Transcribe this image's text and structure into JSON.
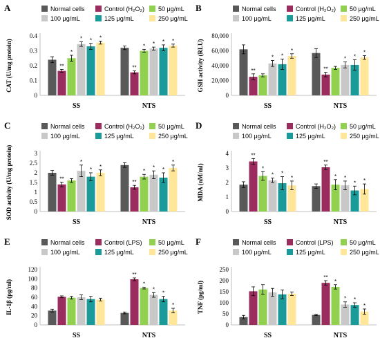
{
  "chart_data": [
    {
      "type": "bar",
      "panel_label": "A",
      "ylabel": "CAT (U/mg protein)",
      "ylim": [
        0,
        0.4
      ],
      "yticks": [
        "0",
        "0.1",
        "0.2",
        "0.3",
        "0.4"
      ],
      "categories": [
        "SS",
        "NTS"
      ],
      "legend": [
        "Normal cells",
        "Control (H₂O₂)",
        "50 μg/mL",
        "100 μg/mL",
        "125 μg/mL",
        "250 μg/mL"
      ],
      "series": [
        {
          "name": "Normal cells",
          "values": [
            0.24,
            0.32
          ],
          "errors": [
            0.02,
            0.012
          ],
          "sig": [
            "",
            ""
          ]
        },
        {
          "name": "Control (H₂O₂)",
          "values": [
            0.165,
            0.155
          ],
          "errors": [
            0.01,
            0.01
          ],
          "sig": [
            "**",
            "**"
          ]
        },
        {
          "name": "50 μg/mL",
          "values": [
            0.25,
            0.3
          ],
          "errors": [
            0.02,
            0.01
          ],
          "sig": [
            "*",
            "*"
          ]
        },
        {
          "name": "100 μg/mL",
          "values": [
            0.345,
            0.315
          ],
          "errors": [
            0.015,
            0.01
          ],
          "sig": [
            "*",
            "*"
          ]
        },
        {
          "name": "125 μg/mL",
          "values": [
            0.33,
            0.32
          ],
          "errors": [
            0.02,
            0.02
          ],
          "sig": [
            "*",
            "*"
          ]
        },
        {
          "name": "250 μg/mL",
          "values": [
            0.355,
            0.335
          ],
          "errors": [
            0.01,
            0.01
          ],
          "sig": [
            "*",
            "*"
          ]
        }
      ]
    },
    {
      "type": "bar",
      "panel_label": "B",
      "ylabel": "GSH activity (RLU)",
      "ylim": [
        0,
        80000
      ],
      "yticks": [
        "0",
        "20,000",
        "40,000",
        "60,000",
        "80,000"
      ],
      "categories": [
        "SS",
        "NTS"
      ],
      "legend": [
        "Normal cells",
        "Control (H₂O₂)",
        "50 μg/mL",
        "100 μg/mL",
        "125 μg/mL",
        "250 μg/mL"
      ],
      "series": [
        {
          "name": "Normal cells",
          "values": [
            62000,
            57000
          ],
          "errors": [
            6000,
            6000
          ],
          "sig": [
            "",
            ""
          ]
        },
        {
          "name": "Control (H₂O₂)",
          "values": [
            25000,
            28000
          ],
          "errors": [
            4000,
            3000
          ],
          "sig": [
            "**",
            "**"
          ]
        },
        {
          "name": "50 μg/mL",
          "values": [
            27000,
            37000
          ],
          "errors": [
            2000,
            2000
          ],
          "sig": [
            "",
            ""
          ]
        },
        {
          "name": "100 μg/mL",
          "values": [
            43000,
            41000
          ],
          "errors": [
            4000,
            4000
          ],
          "sig": [
            "*",
            "*"
          ]
        },
        {
          "name": "125 μg/mL",
          "values": [
            42000,
            41000
          ],
          "errors": [
            7000,
            7000
          ],
          "sig": [
            "*",
            "*"
          ]
        },
        {
          "name": "250 μg/mL",
          "values": [
            53000,
            51000
          ],
          "errors": [
            3000,
            2500
          ],
          "sig": [
            "*",
            "*"
          ]
        }
      ]
    },
    {
      "type": "bar",
      "panel_label": "C",
      "ylabel": "SOD activity (U/mg protein)",
      "ylim": [
        0,
        3
      ],
      "yticks": [
        "0",
        "0.5",
        "1",
        "1.5",
        "2",
        "2.5",
        "3"
      ],
      "categories": [
        "SS",
        "NTS"
      ],
      "legend": [
        "Normal cells",
        "Control (H₂O₂)",
        "50 μg/mL",
        "100 μg/mL",
        "125 μg/mL",
        "250 μg/mL"
      ],
      "series": [
        {
          "name": "Normal cells",
          "values": [
            2.0,
            2.4
          ],
          "errors": [
            0.12,
            0.12
          ],
          "sig": [
            "",
            ""
          ]
        },
        {
          "name": "Control (H₂O₂)",
          "values": [
            1.4,
            1.25
          ],
          "errors": [
            0.12,
            0.1
          ],
          "sig": [
            "**",
            "**"
          ]
        },
        {
          "name": "50 μg/mL",
          "values": [
            1.6,
            1.8
          ],
          "errors": [
            0.1,
            0.12
          ],
          "sig": [
            "",
            "*"
          ]
        },
        {
          "name": "100 μg/mL",
          "values": [
            2.1,
            1.9
          ],
          "errors": [
            0.3,
            0.2
          ],
          "sig": [
            "*",
            "*"
          ]
        },
        {
          "name": "125 μg/mL",
          "values": [
            1.8,
            1.75
          ],
          "errors": [
            0.2,
            0.25
          ],
          "sig": [
            "*",
            "*"
          ]
        },
        {
          "name": "250 μg/mL",
          "values": [
            2.0,
            2.25
          ],
          "errors": [
            0.15,
            0.15
          ],
          "sig": [
            "*",
            "*"
          ]
        }
      ]
    },
    {
      "type": "bar",
      "panel_label": "D",
      "ylabel": "MDA (nM/ml)",
      "ylim": [
        0,
        4
      ],
      "yticks": [
        "0",
        "1",
        "2",
        "3",
        "4"
      ],
      "categories": [
        "SS",
        "NTS"
      ],
      "legend": [
        "Normal cells",
        "Control (H₂O₂)",
        "50 μg/mL",
        "100 μg/mL",
        "125 μg/mL",
        "250 μg/mL"
      ],
      "series": [
        {
          "name": "Normal cells",
          "values": [
            1.85,
            1.75
          ],
          "errors": [
            0.2,
            0.15
          ],
          "sig": [
            "",
            ""
          ]
        },
        {
          "name": "Control (H₂O₂)",
          "values": [
            3.45,
            3.05
          ],
          "errors": [
            0.2,
            0.15
          ],
          "sig": [
            "**",
            "**"
          ]
        },
        {
          "name": "50 μg/mL",
          "values": [
            2.45,
            1.85
          ],
          "errors": [
            0.3,
            0.35
          ],
          "sig": [
            "*",
            "*"
          ]
        },
        {
          "name": "100 μg/mL",
          "values": [
            2.15,
            1.8
          ],
          "errors": [
            0.15,
            0.3
          ],
          "sig": [
            "*",
            "*"
          ]
        },
        {
          "name": "125 μg/mL",
          "values": [
            1.95,
            1.45
          ],
          "errors": [
            0.45,
            0.3
          ],
          "sig": [
            "*",
            "*"
          ]
        },
        {
          "name": "250 μg/mL",
          "values": [
            1.8,
            1.55
          ],
          "errors": [
            0.3,
            0.35
          ],
          "sig": [
            "*",
            "*"
          ]
        }
      ]
    },
    {
      "type": "bar",
      "panel_label": "E",
      "ylabel": "IL-1β (pg/ml)",
      "ylim": [
        0,
        120
      ],
      "yticks": [
        "0",
        "20",
        "40",
        "60",
        "80",
        "100",
        "120"
      ],
      "categories": [
        "SS",
        "NTS"
      ],
      "legend": [
        "Normal cells",
        "Control (LPS)",
        "50 μg/mL",
        "100 μg/mL",
        "125 μg/mL",
        "250 μg/mL"
      ],
      "series": [
        {
          "name": "Normal cells",
          "values": [
            31,
            26
          ],
          "errors": [
            3,
            2
          ],
          "sig": [
            "",
            ""
          ]
        },
        {
          "name": "Control (LPS)",
          "values": [
            61,
            99
          ],
          "errors": [
            2,
            3
          ],
          "sig": [
            "",
            "**"
          ]
        },
        {
          "name": "50 μg/mL",
          "values": [
            59,
            80
          ],
          "errors": [
            3,
            2
          ],
          "sig": [
            "",
            "*"
          ]
        },
        {
          "name": "100 μg/mL",
          "values": [
            60,
            65
          ],
          "errors": [
            5,
            5
          ],
          "sig": [
            "",
            "*"
          ]
        },
        {
          "name": "125 μg/mL",
          "values": [
            56,
            56
          ],
          "errors": [
            6,
            6
          ],
          "sig": [
            "",
            "*"
          ]
        },
        {
          "name": "250 μg/mL",
          "values": [
            55,
            31
          ],
          "errors": [
            3,
            5
          ],
          "sig": [
            "",
            "*"
          ]
        }
      ]
    },
    {
      "type": "bar",
      "panel_label": "F",
      "ylabel": "TNF (pg/ml)",
      "ylim": [
        0,
        250
      ],
      "yticks": [
        "0",
        "50",
        "100",
        "150",
        "200",
        "250"
      ],
      "categories": [
        "SS",
        "NTS"
      ],
      "legend": [
        "Normal cells",
        "Control (LPS)",
        "50 μg/mL",
        "100 μg/mL",
        "125 μg/mL",
        "250 μg/mL"
      ],
      "series": [
        {
          "name": "Normal cells",
          "values": [
            35,
            45
          ],
          "errors": [
            8,
            3
          ],
          "sig": [
            "",
            ""
          ]
        },
        {
          "name": "Control (LPS)",
          "values": [
            152,
            190
          ],
          "errors": [
            20,
            10
          ],
          "sig": [
            "",
            "**"
          ]
        },
        {
          "name": "50 μg/mL",
          "values": [
            160,
            172
          ],
          "errors": [
            22,
            10
          ],
          "sig": [
            "",
            "*"
          ]
        },
        {
          "name": "100 μg/mL",
          "values": [
            147,
            92
          ],
          "errors": [
            18,
            12
          ],
          "sig": [
            "",
            "*"
          ]
        },
        {
          "name": "125 μg/mL",
          "values": [
            138,
            90
          ],
          "errors": [
            20,
            10
          ],
          "sig": [
            "",
            "*"
          ]
        },
        {
          "name": "250 μg/mL",
          "values": [
            141,
            60
          ],
          "errors": [
            8,
            12
          ],
          "sig": [
            "",
            "*"
          ]
        }
      ]
    }
  ],
  "colors": [
    "#595959",
    "#9b2d5e",
    "#92d050",
    "#c8c8c8",
    "#1b9a9a",
    "#ffe699"
  ]
}
